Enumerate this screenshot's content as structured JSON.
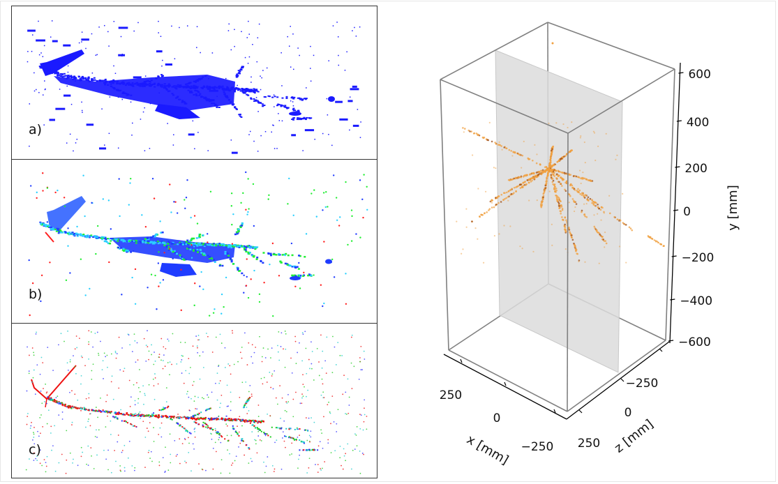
{
  "figure": {
    "panels": [
      {
        "id": "a",
        "label": "a)",
        "description": "projected voxel hits, single color",
        "color_scheme": [
          "#1a1aff"
        ]
      },
      {
        "id": "b",
        "label": "b)",
        "description": "projected voxel hits, colored by class",
        "color_scheme": [
          "#1f3cff",
          "#2ad0ff",
          "#22ee33",
          "#ff2020"
        ]
      },
      {
        "id": "c",
        "label": "c)",
        "description": "reconstructed space points, colored by class",
        "color_scheme": [
          "#e11",
          "#2c2",
          "#33f",
          "#2cc"
        ]
      }
    ],
    "plot3d": {
      "x_axis": {
        "label": "x [mm]",
        "ticks": [
          "250",
          "0",
          "−250"
        ]
      },
      "z_axis": {
        "label": "z [mm]",
        "ticks": [
          "−250",
          "0",
          "250"
        ]
      },
      "y_axis": {
        "label": "y [mm]",
        "ticks": [
          "600",
          "400",
          "200",
          "0",
          "−200",
          "−400",
          "−600"
        ]
      },
      "point_color": "#f0a040",
      "plane_color": "#dcdcdc",
      "box_color": "#808080"
    }
  },
  "chart_data": [
    {
      "type": "scatter",
      "title": "a)",
      "xlabel": "",
      "ylabel": "",
      "notes": "2D projection of an event, all hits in blue; shower starting at left (~x 40-110) developing rightward to ~x 480",
      "grid": false
    },
    {
      "type": "scatter",
      "title": "b)",
      "xlabel": "",
      "ylabel": "",
      "notes": "same event, hits colored by predicted semantic class (blue, cyan, green, red)",
      "grid": false
    },
    {
      "type": "scatter",
      "title": "c)",
      "xlabel": "",
      "ylabel": "",
      "notes": "same event, sparse reconstructed points colored red/green/blue/cyan with main track in red",
      "grid": false
    },
    {
      "type": "scatter3d",
      "title": "",
      "xlabel": "x [mm]",
      "ylabel": "y [mm]",
      "zlabel": "z [mm]",
      "x_ticks": [
        250,
        0,
        -250
      ],
      "z_ticks": [
        -250,
        0,
        250
      ],
      "y_ticks": [
        600,
        400,
        200,
        0,
        -200,
        -400,
        -600
      ],
      "xlim": [
        -350,
        350
      ],
      "zlim": [
        -350,
        350
      ],
      "ylim": [
        -650,
        650
      ],
      "vertex_approx": {
        "x": 0,
        "y": 200,
        "z": 0
      },
      "grid": false,
      "notes": "orange 3D points of tracks radiating from a vertex near y≈200; translucent gray plane at x≈0"
    }
  ]
}
